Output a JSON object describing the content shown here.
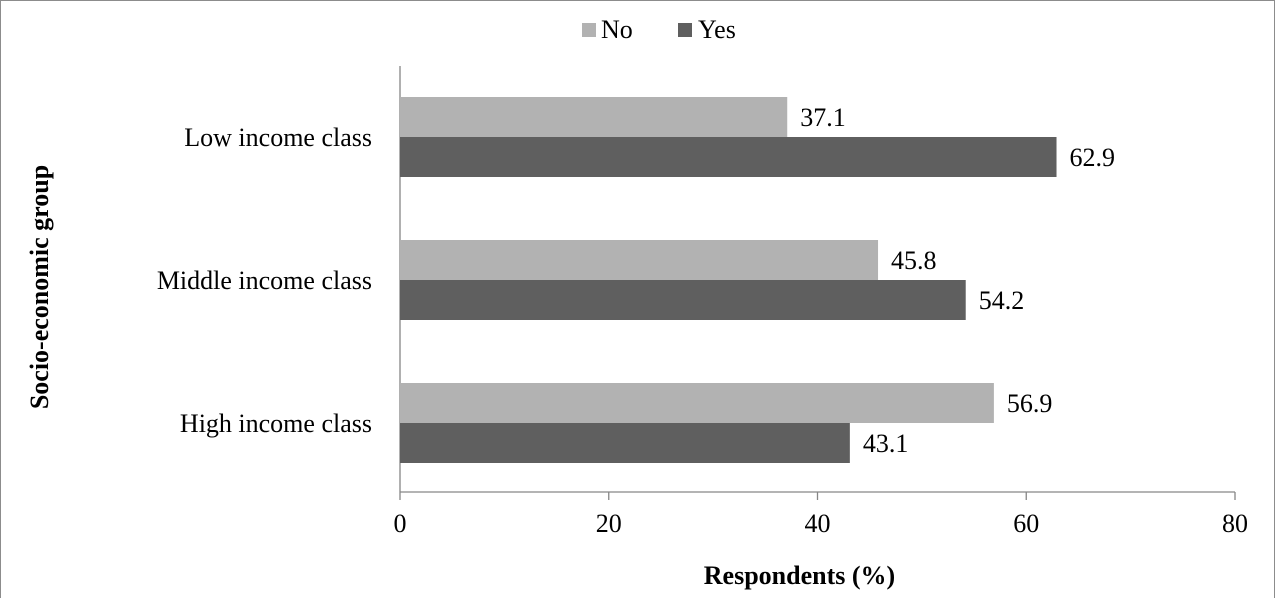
{
  "chart_data": {
    "type": "bar",
    "orientation": "horizontal",
    "categories": [
      "Low income class",
      "Middle income class",
      "High income class"
    ],
    "series": [
      {
        "name": "No",
        "values": [
          37.1,
          45.8,
          56.9
        ],
        "color": "#b2b2b2"
      },
      {
        "name": "Yes",
        "values": [
          62.9,
          54.2,
          43.1
        ],
        "color": "#5f5f5f"
      }
    ],
    "value_labels": [
      [
        "37.1",
        "45.8",
        "56.9"
      ],
      [
        "62.9",
        "54.2",
        "43.1"
      ]
    ],
    "xlabel": "Respondents (%)",
    "ylabel": "Socio-economic group",
    "xlim": [
      0,
      80
    ],
    "xticks": [
      0,
      20,
      40,
      60,
      80
    ],
    "xtick_labels": [
      "0",
      "20",
      "40",
      "60",
      "80"
    ],
    "grid": false,
    "legend_position": "top"
  }
}
